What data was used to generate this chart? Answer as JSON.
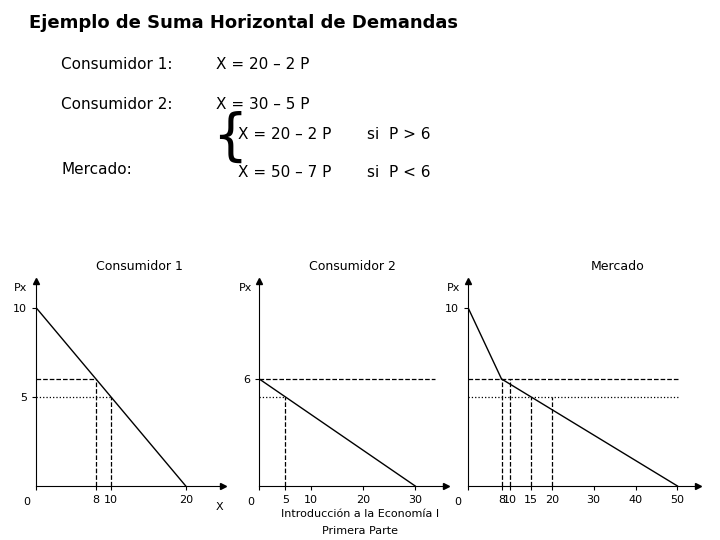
{
  "title": "Ejemplo de Suma Horizontal de Demandas",
  "consumer1_label": "Consumidor 1",
  "consumer2_label": "Consumidor 2",
  "mercado_label": "Mercado",
  "eq1": "X = 20 – 2 P",
  "eq2": "X = 30 – 5 P",
  "mercado_eq1": "X = 20 – 2 P",
  "mercado_eq2": "X = 50 – 7 P",
  "si1": "si  P > 6",
  "si2": "si  P < 6",
  "footer1": "Introducción a la Economía I",
  "footer2": "Primera Parte",
  "px_label": "Px",
  "x_label": "X",
  "bg_color": "#ffffff",
  "line_color": "#000000",
  "c1_xlim": [
    0,
    25
  ],
  "c1_ylim": [
    0,
    11.5
  ],
  "c1_xticks": [
    0,
    8,
    10,
    20
  ],
  "c1_yticks": [
    5,
    10
  ],
  "c2_xlim": [
    0,
    36
  ],
  "c2_ylim": [
    0,
    11.5
  ],
  "c2_xticks": [
    0,
    5,
    10,
    20,
    30
  ],
  "c2_ytick_6": 6,
  "m_xlim": [
    0,
    55
  ],
  "m_ylim": [
    0,
    11.5
  ],
  "m_xticks": [
    0,
    8,
    10,
    15,
    20,
    30,
    40,
    50
  ],
  "m_yticks": [
    10
  ],
  "p_kink": 6,
  "p_ref": 5,
  "font_family": "DejaVu Sans"
}
